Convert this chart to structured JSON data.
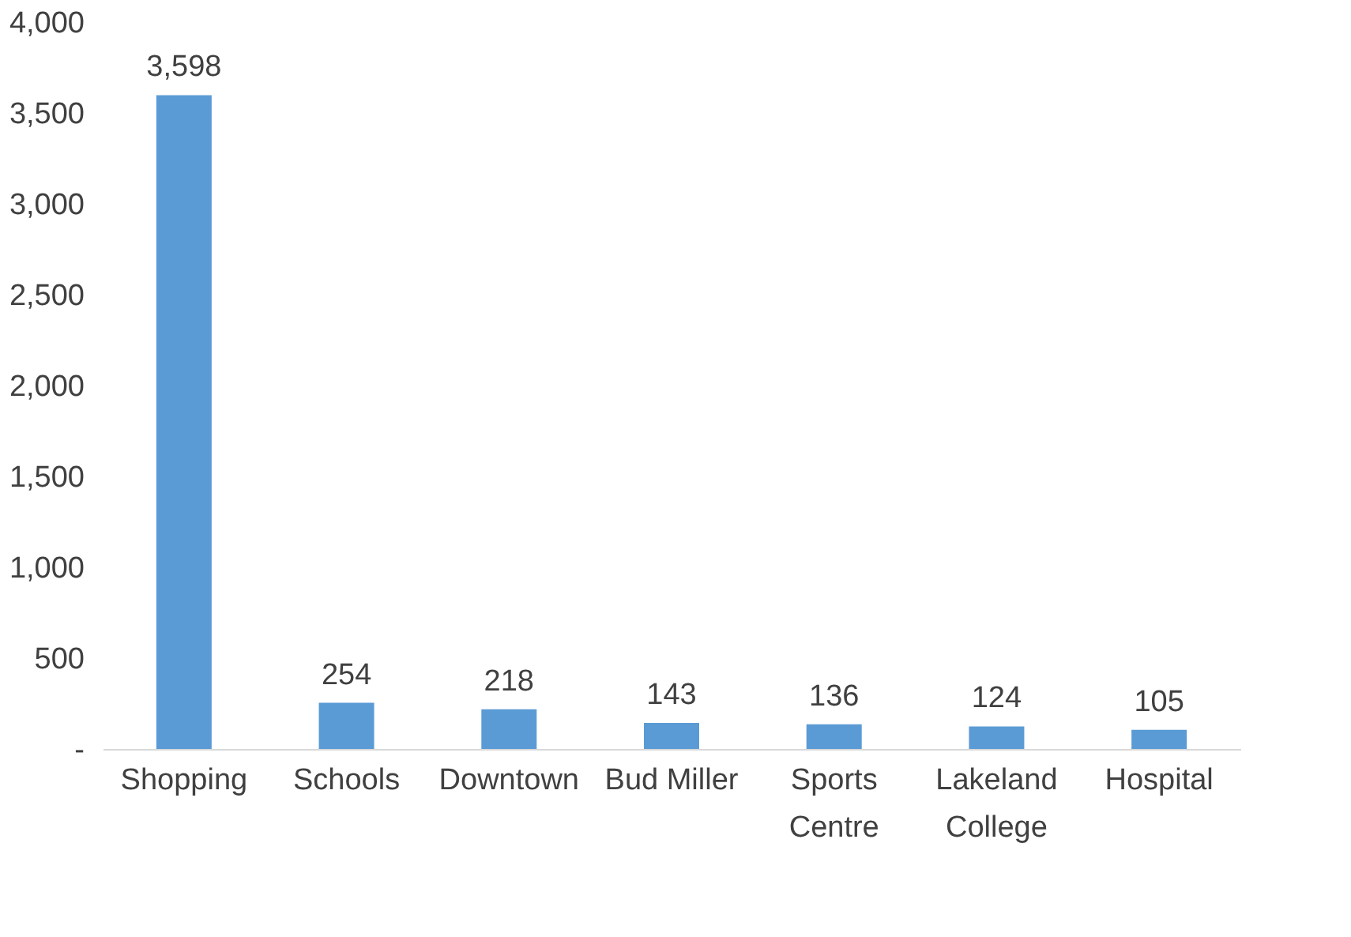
{
  "chart_data": {
    "type": "bar",
    "categories": [
      "Shopping",
      "Schools",
      "Downtown",
      "Bud Miller",
      "Sports Centre",
      "Lakeland College",
      "Hospital"
    ],
    "values": [
      3598,
      254,
      218,
      143,
      136,
      124,
      105
    ],
    "color": "#5b9bd5",
    "ylim": [
      0,
      4000
    ],
    "yticks": [
      {
        "value": 0,
        "label": "-"
      },
      {
        "value": 500,
        "label": "500"
      },
      {
        "value": 1000,
        "label": "1,000"
      },
      {
        "value": 1500,
        "label": "1,500"
      },
      {
        "value": 2000,
        "label": "2,000"
      },
      {
        "value": 2500,
        "label": "2,500"
      },
      {
        "value": 3000,
        "label": "3,000"
      },
      {
        "value": 3500,
        "label": "3,500"
      },
      {
        "value": 4000,
        "label": "4,000"
      }
    ],
    "value_labels": [
      "3,598",
      "254",
      "218",
      "143",
      "136",
      "124",
      "105"
    ],
    "grid": false
  }
}
